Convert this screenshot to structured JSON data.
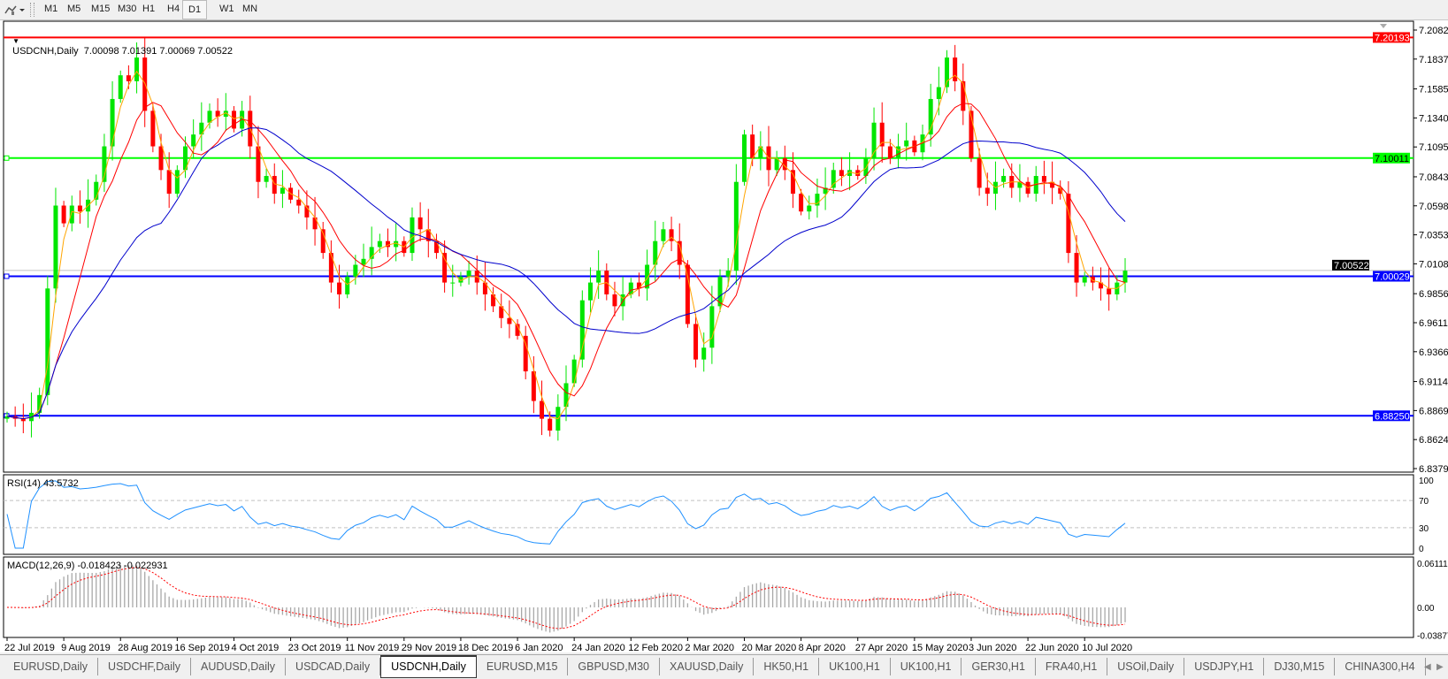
{
  "toolbar": {
    "chart_type_icon": "line-candle-icon",
    "timeframes": [
      "M1",
      "M5",
      "M15",
      "M30",
      "H1",
      "H4",
      "D1",
      "W1",
      "MN"
    ],
    "active_timeframe": "D1"
  },
  "chart": {
    "header": "USDCNH,Daily  7.00098 7.01391 7.00069 7.00522",
    "rsi_label": "RSI(14) 43.5732",
    "macd_label": "MACD(12,26,9) -0.018423 -0.022931"
  },
  "colors": {
    "bull": "#00e600",
    "bear": "#ff0000",
    "ma_fast": "#ffa500",
    "ma_mid": "#ff0000",
    "ma_slow": "#0000cc",
    "rsi": "#1e90ff",
    "macd_hist": "#a8a8a8",
    "macd_signal": "#ff0000"
  },
  "chart_data": {
    "type": "candlestick",
    "symbol": "USDCNH",
    "timeframe": "Daily",
    "ohlc_last": {
      "open": 7.00098,
      "high": 7.01391,
      "low": 7.00069,
      "close": 7.00522
    },
    "closes": [
      6.882,
      6.88,
      6.878,
      6.885,
      6.9,
      6.99,
      7.06,
      7.045,
      7.06,
      7.055,
      7.065,
      7.08,
      7.11,
      7.15,
      7.17,
      7.165,
      7.185,
      7.14,
      7.11,
      7.09,
      7.07,
      7.09,
      7.11,
      7.12,
      7.13,
      7.14,
      7.135,
      7.14,
      7.125,
      7.14,
      7.11,
      7.08,
      7.085,
      7.07,
      7.075,
      7.065,
      7.06,
      7.05,
      7.04,
      7.02,
      6.995,
      6.985,
      7.0,
      7.01,
      7.015,
      7.025,
      7.03,
      7.025,
      7.03,
      7.02,
      7.05,
      7.04,
      7.03,
      7.02,
      6.995,
      6.995,
      7.0,
      7.005,
      6.995,
      6.985,
      6.975,
      6.965,
      6.96,
      6.95,
      6.92,
      6.895,
      6.88,
      6.87,
      6.89,
      6.91,
      6.93,
      6.98,
      6.995,
      7.005,
      6.985,
      6.975,
      6.985,
      6.995,
      6.99,
      7.01,
      7.03,
      7.04,
      7.03,
      7.01,
      6.96,
      6.93,
      6.94,
      6.975,
      7.0,
      7.005,
      7.08,
      7.12,
      7.1,
      7.11,
      7.09,
      7.1,
      7.09,
      7.07,
      7.055,
      7.06,
      7.07,
      7.075,
      7.09,
      7.085,
      7.09,
      7.085,
      7.1,
      7.13,
      7.11,
      7.1,
      7.11,
      7.115,
      7.105,
      7.12,
      7.15,
      7.16,
      7.185,
      7.165,
      7.14,
      7.1,
      7.075,
      7.07,
      7.08,
      7.085,
      7.075,
      7.08,
      7.07,
      7.085,
      7.08,
      7.075,
      7.07,
      7.02,
      6.995,
      7.0,
      6.995,
      6.99,
      6.985,
      6.995,
      7.005
    ],
    "x_tick_labels": [
      "22 Jul 2019",
      "9 Aug 2019",
      "28 Aug 2019",
      "16 Sep 2019",
      "4 Oct 2019",
      "23 Oct 2019",
      "11 Nov 2019",
      "29 Nov 2019",
      "18 Dec 2019",
      "6 Jan 2020",
      "24 Jan 2020",
      "12 Feb 2020",
      "2 Mar 2020",
      "20 Mar 2020",
      "8 Apr 2020",
      "27 Apr 2020",
      "15 May 2020",
      "3 Jun 2020",
      "22 Jun 2020",
      "10 Jul 2020"
    ],
    "y_tick_labels": [
      "7.20820",
      "7.18370",
      "7.15850",
      "7.13400",
      "7.10950",
      "7.08430",
      "7.05980",
      "7.03530",
      "7.01080",
      "6.98560",
      "6.96110",
      "6.93660",
      "6.91140",
      "6.88690",
      "6.86240",
      "6.83790"
    ],
    "ylim": [
      6.8379,
      7.2082
    ],
    "horizontal_lines": [
      {
        "price": "7.20193",
        "color": "#ff0000",
        "text_color": "#ffffff"
      },
      {
        "price": "7.10011",
        "color": "#00ff00",
        "text_color": "#000000"
      },
      {
        "price": "7.00029",
        "color": "#0000ff",
        "text_color": "#ffffff"
      },
      {
        "price": "6.88250",
        "color": "#0000ff",
        "text_color": "#ffffff"
      }
    ],
    "current_price": "7.00522",
    "rsi": {
      "period": 14,
      "value": 43.5732,
      "levels": [
        70,
        30
      ],
      "axis_labels": [
        "100",
        "70",
        "30",
        "0"
      ]
    },
    "macd": {
      "fast": 12,
      "slow": 26,
      "signal": 9,
      "value": -0.018423,
      "signal_value": -0.022931,
      "axis_labels": [
        "0.061119",
        "0.00",
        "-0.038774"
      ]
    }
  },
  "tabs": [
    {
      "label": "EURUSD,Daily"
    },
    {
      "label": "USDCHF,Daily"
    },
    {
      "label": "AUDUSD,Daily"
    },
    {
      "label": "USDCAD,Daily"
    },
    {
      "label": "USDCNH,Daily",
      "active": true
    },
    {
      "label": "EURUSD,M15"
    },
    {
      "label": "GBPUSD,M30"
    },
    {
      "label": "XAUUSD,Daily"
    },
    {
      "label": "HK50,H1"
    },
    {
      "label": "UK100,H1"
    },
    {
      "label": "UK100,H1"
    },
    {
      "label": "GER30,H1"
    },
    {
      "label": "FRA40,H1"
    },
    {
      "label": "USOil,Daily"
    },
    {
      "label": "USDJPY,H1"
    },
    {
      "label": "DJ30,M15"
    },
    {
      "label": "CHINA300,H4"
    }
  ]
}
